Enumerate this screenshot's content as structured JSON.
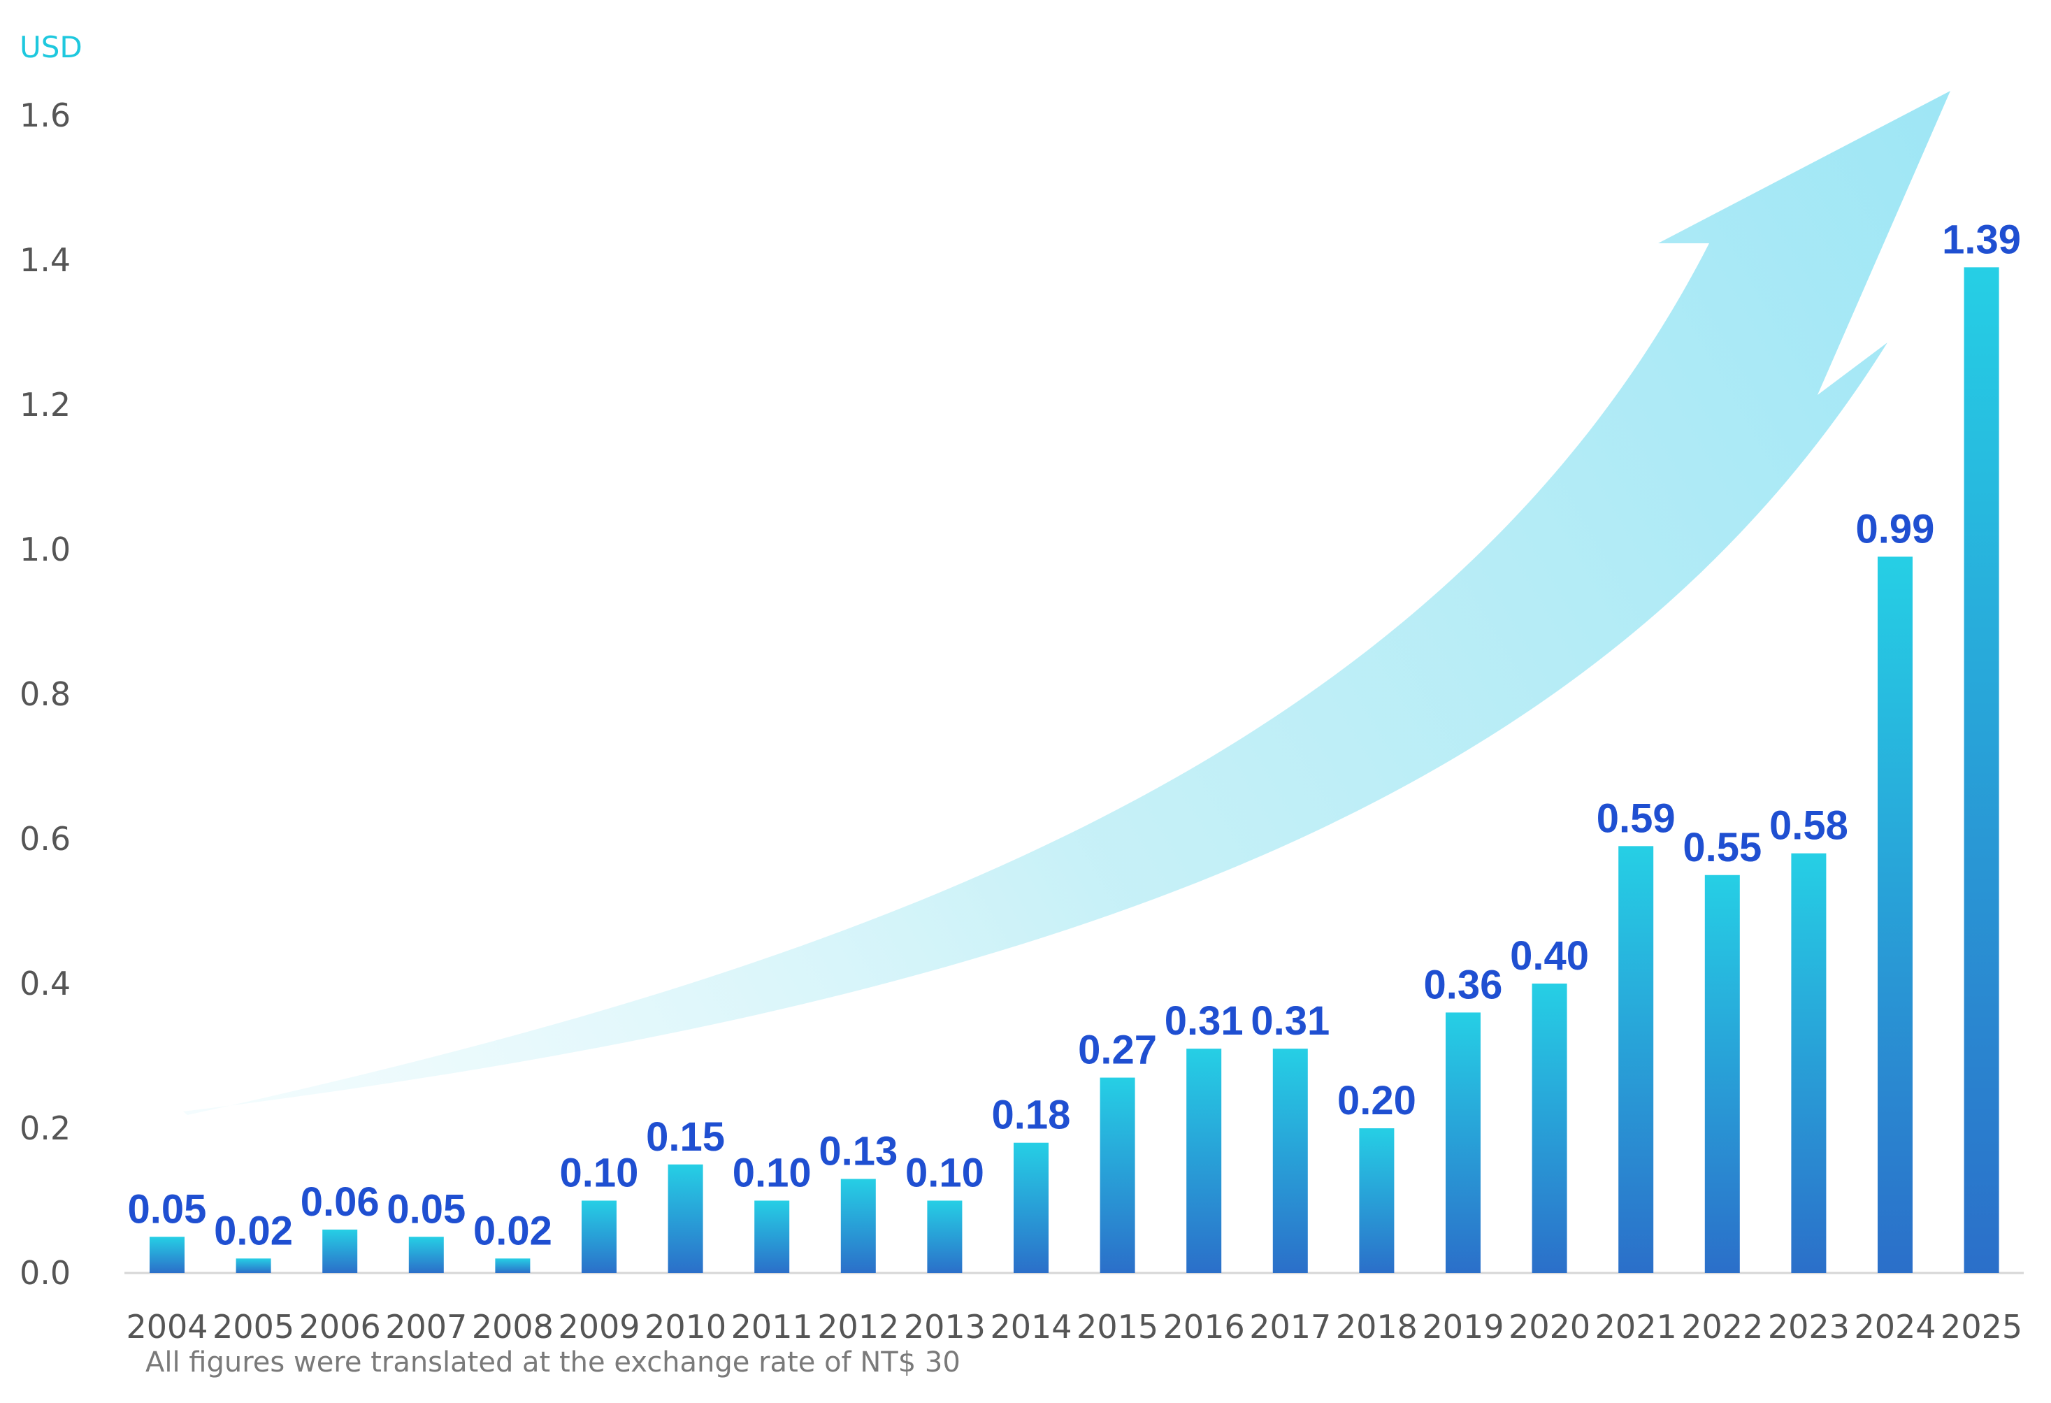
{
  "chart_data": {
    "type": "bar",
    "unit_label": "USD",
    "categories": [
      "2004",
      "2005",
      "2006",
      "2007",
      "2008",
      "2009",
      "2010",
      "2011",
      "2012",
      "2013",
      "2014",
      "2015",
      "2016",
      "2017",
      "2018",
      "2019",
      "2020",
      "2021",
      "2022",
      "2023",
      "2024",
      "2025"
    ],
    "values": [
      0.05,
      0.02,
      0.06,
      0.05,
      0.02,
      0.1,
      0.15,
      0.1,
      0.13,
      0.1,
      0.18,
      0.27,
      0.31,
      0.31,
      0.2,
      0.36,
      0.4,
      0.59,
      0.55,
      0.58,
      0.99,
      1.39
    ],
    "value_labels": [
      "0.05",
      "0.02",
      "0.06",
      "0.05",
      "0.02",
      "0.10",
      "0.15",
      "0.10",
      "0.13",
      "0.10",
      "0.18",
      "0.27",
      "0.31",
      "0.31",
      "0.20",
      "0.36",
      "0.40",
      "0.59",
      "0.55",
      "0.58",
      "0.99",
      "1.39"
    ],
    "y_ticks": [
      "0.0",
      "0.2",
      "0.4",
      "0.6",
      "0.8",
      "1.0",
      "1.2",
      "1.4",
      "1.6"
    ],
    "ylim": [
      0,
      1.6
    ],
    "grid": false,
    "legend": "none",
    "footnote": "All  figures were translated at the exchange rate of NT$ 30",
    "colors": {
      "bar_top": "#26cfe5",
      "bar_bottom": "#2b6fc9",
      "data_label": "#1f4fd1",
      "unit_label": "#1ec8de",
      "tick_label": "#555555",
      "axis_line": "#d6d6d6",
      "arrow": "#9ee6f5"
    },
    "decoration": "upward-trend-arrow"
  }
}
